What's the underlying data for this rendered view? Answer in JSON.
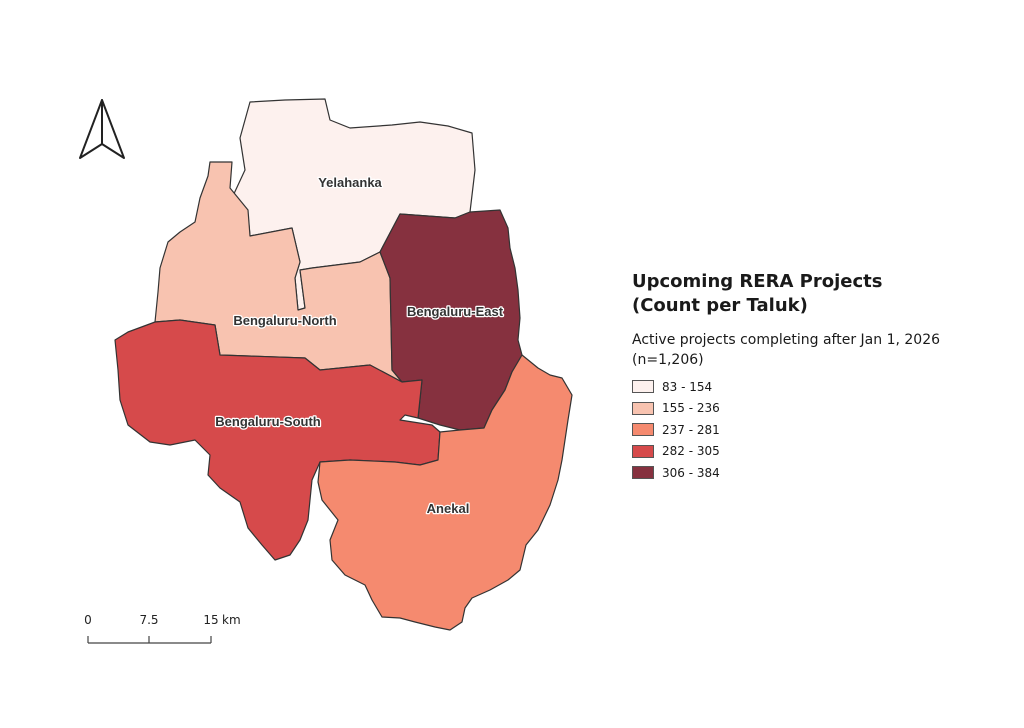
{
  "legend": {
    "title_line1": "Upcoming RERA Projects",
    "title_line2": "(Count per Taluk)",
    "subtitle_line1": "Active projects completing after Jan 1, 2026",
    "subtitle_line2": "(n=1,206)",
    "classes": [
      {
        "label": "83 - 154",
        "color": "#fdf1ee"
      },
      {
        "label": "155 - 236",
        "color": "#f8c3b0"
      },
      {
        "label": "237 - 281",
        "color": "#f58a6f"
      },
      {
        "label": "282 - 305",
        "color": "#d64a4b"
      },
      {
        "label": "306 - 384",
        "color": "#86313f"
      }
    ]
  },
  "districts": [
    {
      "name": "Yelahanka",
      "class_index": 0
    },
    {
      "name": "Bengaluru-North",
      "class_index": 1
    },
    {
      "name": "Bengaluru-East",
      "class_index": 4
    },
    {
      "name": "Bengaluru-South",
      "class_index": 3
    },
    {
      "name": "Anekal",
      "class_index": 2
    }
  ],
  "scalebar": {
    "tick_0": "0",
    "tick_1": "7.5",
    "tick_2": "15",
    "unit": "km"
  },
  "north_arrow": {
    "icon": "north-arrow-icon"
  }
}
